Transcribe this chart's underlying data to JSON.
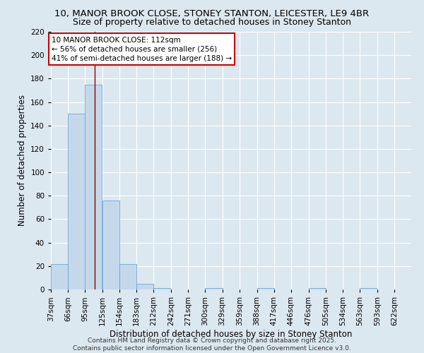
{
  "title": "10, MANOR BROOK CLOSE, STONEY STANTON, LEICESTER, LE9 4BR",
  "subtitle": "Size of property relative to detached houses in Stoney Stanton",
  "xlabel": "Distribution of detached houses by size in Stoney Stanton",
  "ylabel": "Number of detached properties",
  "bins": [
    "37sqm",
    "66sqm",
    "95sqm",
    "125sqm",
    "154sqm",
    "183sqm",
    "212sqm",
    "242sqm",
    "271sqm",
    "300sqm",
    "329sqm",
    "359sqm",
    "388sqm",
    "417sqm",
    "446sqm",
    "476sqm",
    "505sqm",
    "534sqm",
    "563sqm",
    "593sqm",
    "622sqm"
  ],
  "bin_edges": [
    37,
    66,
    95,
    125,
    154,
    183,
    212,
    242,
    271,
    300,
    329,
    359,
    388,
    417,
    446,
    476,
    505,
    534,
    563,
    593,
    622
  ],
  "counts": [
    22,
    150,
    175,
    76,
    22,
    5,
    1,
    0,
    0,
    1,
    0,
    0,
    1,
    0,
    0,
    1,
    0,
    0,
    1,
    0,
    0
  ],
  "bar_color": "#c5d8ea",
  "bar_edge_color": "#5b9bd5",
  "property_size": 112,
  "vline_color": "#8b0000",
  "annotation_line1": "10 MANOR BROOK CLOSE: 112sqm",
  "annotation_line2": "← 56% of detached houses are smaller (256)",
  "annotation_line3": "41% of semi-detached houses are larger (188) →",
  "annotation_box_color": "#ffffff",
  "annotation_box_edge": "#cc0000",
  "ylim": [
    0,
    220
  ],
  "yticks": [
    0,
    20,
    40,
    60,
    80,
    100,
    120,
    140,
    160,
    180,
    200,
    220
  ],
  "background_color": "#dce8f0",
  "plot_bg_color": "#dce8f0",
  "footer_line1": "Contains HM Land Registry data © Crown copyright and database right 2025.",
  "footer_line2": "Contains public sector information licensed under the Open Government Licence v3.0.",
  "title_fontsize": 9.5,
  "subtitle_fontsize": 9,
  "axis_label_fontsize": 8.5,
  "tick_fontsize": 7.5,
  "annotation_fontsize": 7.5,
  "footer_fontsize": 6.5
}
